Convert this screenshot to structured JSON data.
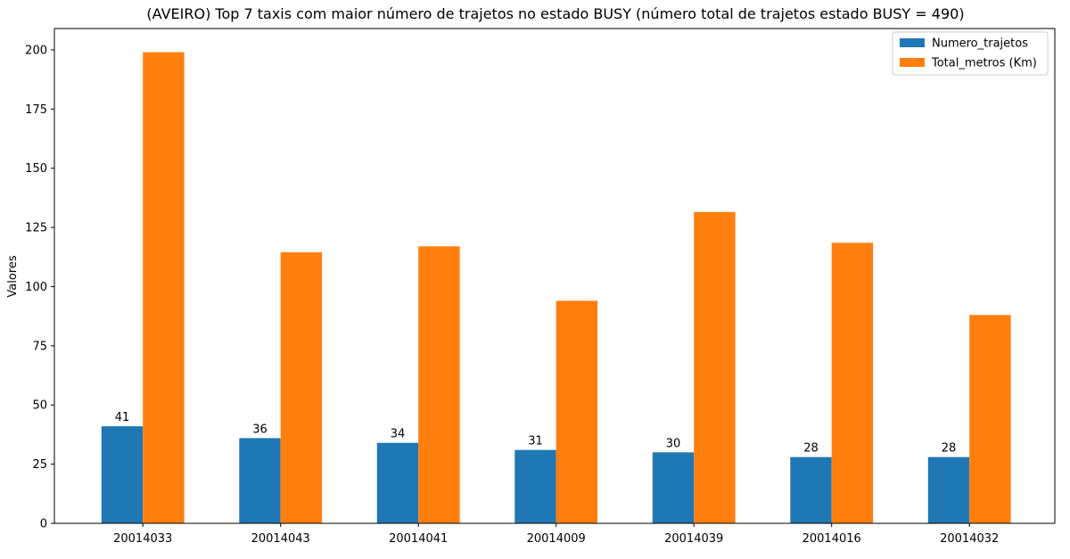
{
  "chart_data": {
    "type": "bar",
    "title": "(AVEIRO) Top 7 taxis com maior número de trajetos no estado BUSY (número total de trajetos estado BUSY = 490)",
    "xlabel": "",
    "ylabel": "Valores",
    "categories": [
      "20014033",
      "20014043",
      "20014041",
      "20014009",
      "20014039",
      "20014016",
      "20014032"
    ],
    "series": [
      {
        "name": "Numero_trajetos",
        "color": "#1f77b4",
        "values": [
          41,
          36,
          34,
          31,
          30,
          28,
          28
        ],
        "show_labels": true
      },
      {
        "name": "Total_metros (Km)",
        "color": "#ff7f0e",
        "values": [
          199,
          114.5,
          117,
          94,
          131.5,
          118.5,
          88
        ],
        "show_labels": false
      }
    ],
    "ylim": [
      0,
      209
    ],
    "yticks": [
      0,
      25,
      50,
      75,
      100,
      125,
      150,
      175,
      200
    ],
    "grid": false,
    "legend_position": "top-right"
  }
}
